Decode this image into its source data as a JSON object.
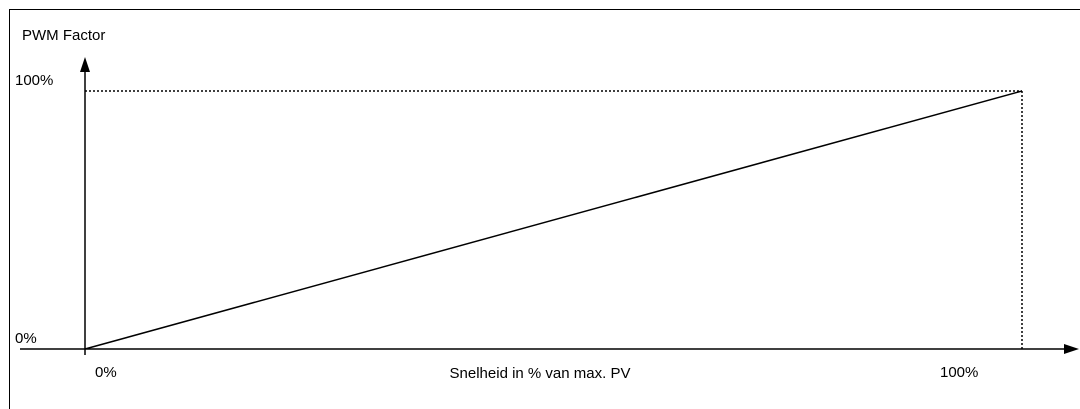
{
  "chart_data": {
    "type": "line",
    "y_label": "PWM Factor",
    "x_label": "Snelheid in % van max. PV",
    "x": [
      0,
      100
    ],
    "series": [
      {
        "name": null,
        "color": "#000000",
        "values": [
          0,
          100
        ]
      }
    ],
    "xlim": [
      0,
      100
    ],
    "ylim": [
      0,
      100
    ],
    "xticks": [
      {
        "value": 0,
        "label": "0%"
      },
      {
        "value": 100,
        "label": "100%"
      }
    ],
    "yticks": [
      {
        "value": 0,
        "label": "0%"
      },
      {
        "value": 100,
        "label": "100%"
      }
    ]
  }
}
